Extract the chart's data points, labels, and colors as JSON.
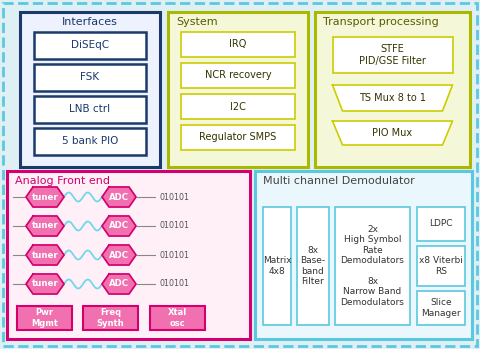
{
  "bg_color": "#dff0f5",
  "outer_border_color": "#5bc8e0",
  "top_left_box": {
    "label": "Interfaces",
    "border_color": "#1a3a6b",
    "fill_color": "#eef2ff",
    "items": [
      "DiSEqC",
      "FSK",
      "LNB ctrl",
      "5 bank PIO"
    ],
    "item_fill": "#ffffff",
    "item_border": "#1a3a6b"
  },
  "top_mid_box": {
    "label": "System",
    "border_color": "#aab800",
    "fill_color": "#f5f8d8",
    "items": [
      "IRQ",
      "NCR recovery",
      "I2C",
      "Regulator SMPS"
    ],
    "item_fill": "#ffffff",
    "item_border": "#cccc00"
  },
  "top_right_box": {
    "label": "Transport processing",
    "border_color": "#aab800",
    "fill_color": "#f5f8d8",
    "items": [
      "STFE\nPID/GSE Filter",
      "TS Mux 8 to 1",
      "PIO Mux"
    ],
    "item_fill": "#ffffff",
    "item_border": "#cccc00"
  },
  "bot_left_box": {
    "label": "Analog Front end",
    "border_color": "#d4006e",
    "fill_color": "#fff0f8",
    "tuner_color": "#f070b0",
    "adc_color": "#f070b0",
    "wave_color": "#70d8ec",
    "bottom_items": [
      "Pwr\nMgmt",
      "Freq\nSynth",
      "Xtal\nosc"
    ],
    "bottom_fill": "#f070b0",
    "bottom_border": "#d4006e"
  },
  "bot_right_box": {
    "label": "Multi channel Demodulator",
    "border_color": "#5bc8e0",
    "fill_color": "#eaf7fc",
    "matrix_label": "Matrix\n4x8",
    "filter_label": "8x\nBase-\nband\nFilter",
    "demod_label": "2x\nHigh Symbol\nRate\nDemodulators\n\n8x\nNarrow Band\nDemodulators",
    "ldpc_label": "LDPC",
    "viterbi_label": "x8 Viterbi\nRS",
    "slice_label": "Slice\nManager",
    "inner_fill": "#ffffff",
    "inner_border": "#5bc8e0"
  }
}
